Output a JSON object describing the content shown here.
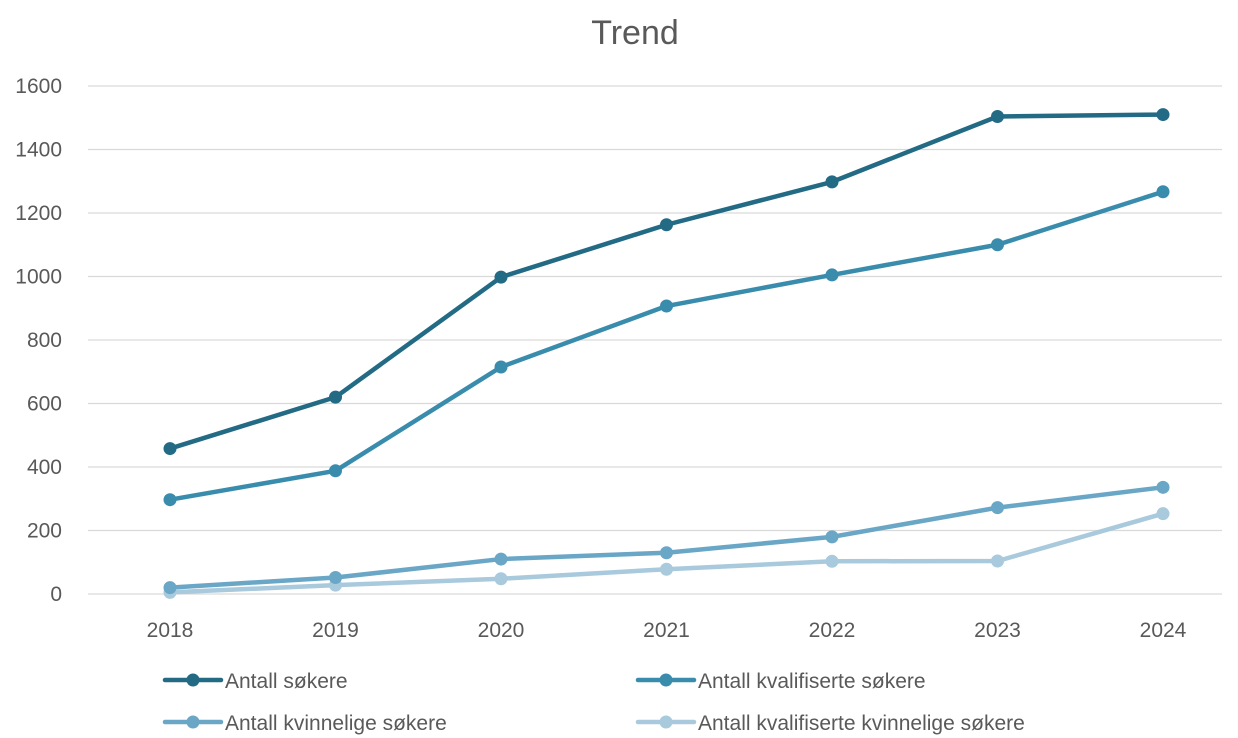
{
  "chart_data": {
    "type": "line",
    "title": "Trend",
    "categories": [
      "2018",
      "2019",
      "2020",
      "2021",
      "2022",
      "2023",
      "2024"
    ],
    "ylim": [
      0,
      1600
    ],
    "yticks": [
      0,
      200,
      400,
      600,
      800,
      1000,
      1200,
      1400,
      1600
    ],
    "grid": true,
    "legend_position": "bottom",
    "series": [
      {
        "name": "Antall søkere",
        "color": "#236a85",
        "values": [
          458,
          620,
          998,
          1163,
          1298,
          1504,
          1510
        ]
      },
      {
        "name": "Antall kvalifiserte søkere",
        "color": "#3a8cad",
        "values": [
          297,
          388,
          715,
          907,
          1005,
          1100,
          1267
        ]
      },
      {
        "name": "Antall kvinnelige søkere",
        "color": "#6aa6c6",
        "values": [
          20,
          52,
          110,
          130,
          180,
          272,
          336
        ]
      },
      {
        "name": "Antall kvalifiserte kvinnelige søkere",
        "color": "#a9c9dd",
        "values": [
          5,
          28,
          48,
          78,
          103,
          104,
          253
        ]
      }
    ]
  }
}
